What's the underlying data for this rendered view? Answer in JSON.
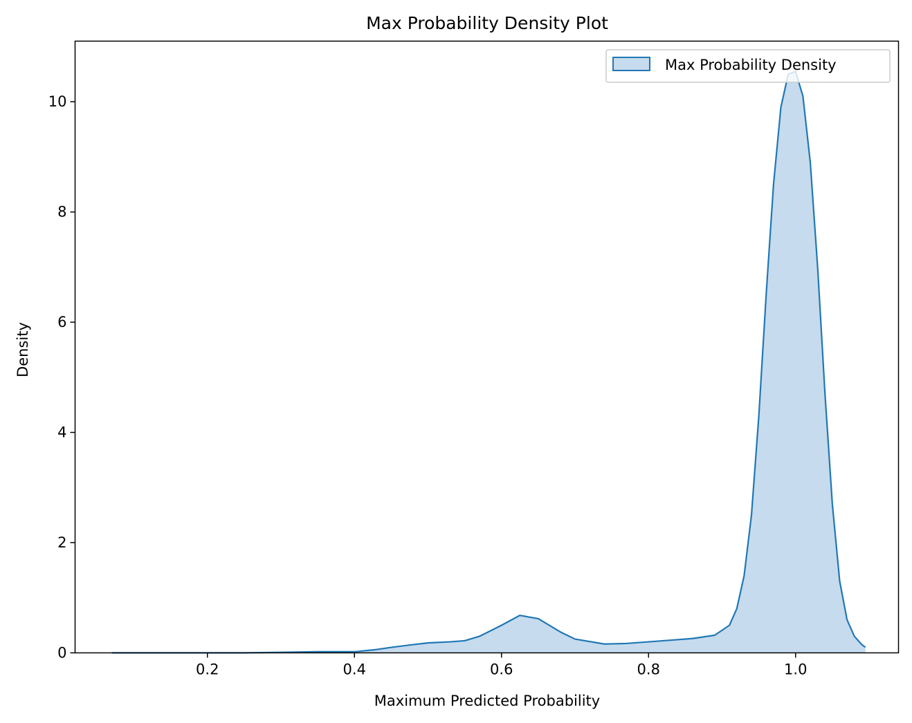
{
  "chart_data": {
    "type": "area",
    "title": "Max Probability Density Plot",
    "xlabel": "Maximum Predicted Probability",
    "ylabel": "Density",
    "xlim": [
      0.02,
      1.14
    ],
    "ylim": [
      0,
      11.1
    ],
    "x_ticks": [
      0.2,
      0.4,
      0.6,
      0.8,
      1.0
    ],
    "x_tick_labels": [
      "0.2",
      "0.4",
      "0.6",
      "0.8",
      "1.0"
    ],
    "y_ticks": [
      0,
      2,
      4,
      6,
      8,
      10
    ],
    "y_tick_labels": [
      "0",
      "2",
      "4",
      "6",
      "8",
      "10"
    ],
    "grid": false,
    "legend_position": "top-right",
    "line_color": "#1f77b4",
    "fill_color": "#c6dbed",
    "series": [
      {
        "name": "Max Probability Density",
        "x": [
          0.07,
          0.1,
          0.15,
          0.2,
          0.25,
          0.3,
          0.35,
          0.4,
          0.43,
          0.45,
          0.48,
          0.5,
          0.53,
          0.55,
          0.57,
          0.6,
          0.625,
          0.65,
          0.68,
          0.7,
          0.74,
          0.77,
          0.8,
          0.83,
          0.86,
          0.89,
          0.91,
          0.92,
          0.93,
          0.94,
          0.95,
          0.96,
          0.97,
          0.98,
          0.99,
          1.0,
          1.01,
          1.02,
          1.03,
          1.04,
          1.05,
          1.06,
          1.07,
          1.08,
          1.09,
          1.095
        ],
        "y": [
          0.0,
          0.0,
          0.0,
          0.0,
          0.0,
          0.01,
          0.02,
          0.02,
          0.06,
          0.1,
          0.15,
          0.18,
          0.2,
          0.22,
          0.3,
          0.5,
          0.68,
          0.62,
          0.38,
          0.25,
          0.16,
          0.17,
          0.2,
          0.23,
          0.26,
          0.32,
          0.5,
          0.8,
          1.4,
          2.5,
          4.3,
          6.5,
          8.5,
          9.9,
          10.5,
          10.55,
          10.1,
          8.9,
          7.0,
          4.7,
          2.7,
          1.3,
          0.6,
          0.3,
          0.15,
          0.1
        ]
      }
    ]
  }
}
